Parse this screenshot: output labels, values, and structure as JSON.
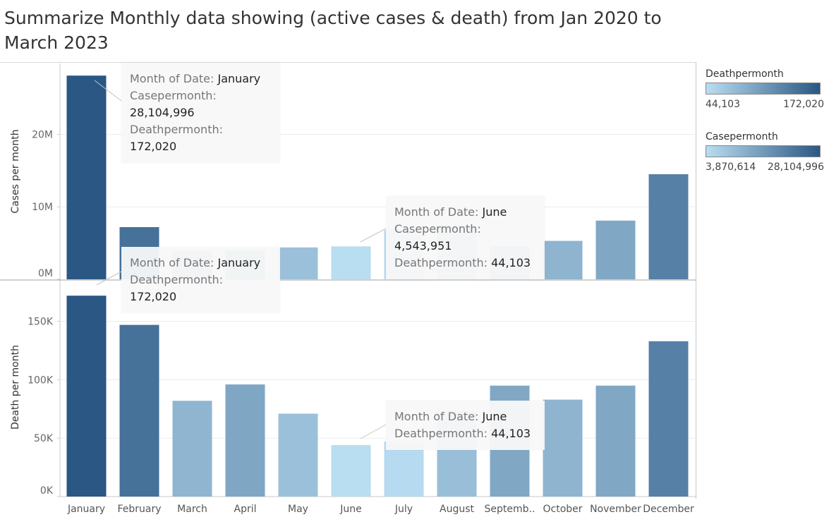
{
  "title": "Summarize Monthly data showing (active cases & death) from Jan 2020 to March 2023",
  "chart_data": [
    {
      "type": "bar",
      "ylabel": "Cases per month",
      "ylim": [
        0,
        29000000
      ],
      "yticks": [
        "0M",
        "10M",
        "20M"
      ],
      "ytick_values": [
        0,
        10000000,
        20000000
      ],
      "categories": [
        "January",
        "February",
        "March",
        "April",
        "May",
        "June",
        "July",
        "August",
        "Septemb..",
        "October",
        "November",
        "December"
      ],
      "values": [
        28104996,
        7200000,
        3870614,
        4000000,
        4400000,
        4543951,
        6800000,
        7500000,
        4600000,
        5300000,
        8100000,
        14500000
      ],
      "death_colors": [
        172020,
        147000,
        82000,
        96000,
        71000,
        44103,
        47000,
        73000,
        95000,
        83000,
        95000,
        133000
      ]
    },
    {
      "type": "bar",
      "ylabel": "Death per month",
      "ylim": [
        0,
        180000
      ],
      "yticks": [
        "0K",
        "50K",
        "100K",
        "150K"
      ],
      "ytick_values": [
        0,
        50000,
        100000,
        150000
      ],
      "categories": [
        "January",
        "February",
        "March",
        "April",
        "May",
        "June",
        "July",
        "August",
        "Septemb..",
        "October",
        "November",
        "December"
      ],
      "values": [
        172020,
        147000,
        82000,
        96000,
        71000,
        44103,
        47000,
        73000,
        95000,
        83000,
        95000,
        133000
      ]
    }
  ],
  "legend": {
    "death": {
      "title": "Deathpermonth",
      "min": "44,103",
      "max": "172,020",
      "min_value": 44103,
      "max_value": 172020
    },
    "cases": {
      "title": "Casepermonth",
      "min": "3,870,614",
      "max": "28,104,996"
    }
  },
  "colors": {
    "low": "#b9ddf1",
    "high": "#2a5783",
    "grid": "#ececec",
    "axis": "#c8c8c8"
  },
  "tooltips": {
    "cases_jan": {
      "l1": "Month of Date:",
      "v1": "January",
      "l2": "Casepermonth:",
      "v2": "28,104,996",
      "l3": "Deathpermonth:",
      "v3": "172,020"
    },
    "cases_jun": {
      "l1": "Month of Date:",
      "v1": "June",
      "l2": "Casepermonth:",
      "v2": "4,543,951",
      "l3": "Deathpermonth:",
      "v3": "44,103"
    },
    "death_jan": {
      "l1": "Month of Date:",
      "v1": "January",
      "l2": "Deathpermonth:",
      "v2": "172,020"
    },
    "death_jun": {
      "l1": "Month of Date:",
      "v1": "June",
      "l2": "Deathpermonth:",
      "v2": "44,103"
    }
  }
}
